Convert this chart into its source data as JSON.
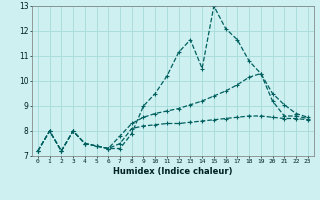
{
  "xlabel": "Humidex (Indice chaleur)",
  "bg_color": "#cff0f0",
  "grid_color": "#aadddd",
  "line_color": "#006060",
  "x": [
    0,
    1,
    2,
    3,
    4,
    5,
    6,
    7,
    8,
    9,
    10,
    11,
    12,
    13,
    14,
    15,
    16,
    17,
    18,
    19,
    20,
    21,
    22,
    23
  ],
  "line_max": [
    7.2,
    8.0,
    7.2,
    8.0,
    7.5,
    7.4,
    7.3,
    7.3,
    7.9,
    9.0,
    9.5,
    10.2,
    11.15,
    11.65,
    10.5,
    13.0,
    12.1,
    11.65,
    10.8,
    10.3,
    9.2,
    8.6,
    8.6,
    8.5
  ],
  "line_mean": [
    7.2,
    8.0,
    7.2,
    8.0,
    7.5,
    7.4,
    7.3,
    7.8,
    8.3,
    8.55,
    8.7,
    8.8,
    8.9,
    9.05,
    9.2,
    9.4,
    9.6,
    9.85,
    10.15,
    10.3,
    9.5,
    9.05,
    8.7,
    8.55
  ],
  "line_min": [
    7.2,
    8.0,
    7.2,
    8.0,
    7.5,
    7.4,
    7.3,
    7.5,
    8.1,
    8.2,
    8.25,
    8.3,
    8.3,
    8.35,
    8.4,
    8.45,
    8.5,
    8.55,
    8.6,
    8.6,
    8.55,
    8.5,
    8.5,
    8.45
  ],
  "ylim": [
    7,
    13
  ],
  "xlim": [
    -0.5,
    23.5
  ],
  "yticks": [
    7,
    8,
    9,
    10,
    11,
    12,
    13
  ],
  "xticks": [
    0,
    1,
    2,
    3,
    4,
    5,
    6,
    7,
    8,
    9,
    10,
    11,
    12,
    13,
    14,
    15,
    16,
    17,
    18,
    19,
    20,
    21,
    22,
    23
  ]
}
